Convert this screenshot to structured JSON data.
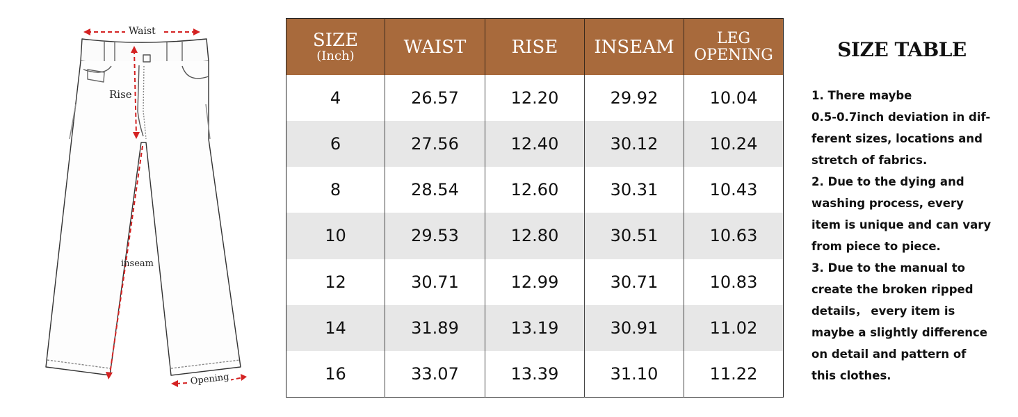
{
  "diagram": {
    "waist_label": "Waist",
    "rise_label": "Rise",
    "inseam_label": "inseam",
    "opening_label": "Opening"
  },
  "table": {
    "headers": [
      {
        "main": "SIZE",
        "sub": "(Inch)"
      },
      {
        "main": "WAIST"
      },
      {
        "main": "RISE"
      },
      {
        "main": "INSEAM"
      },
      {
        "main": "LEG",
        "sub": "OPENING"
      }
    ],
    "rows": [
      [
        "4",
        "26.57",
        "12.20",
        "29.92",
        "10.04"
      ],
      [
        "6",
        "27.56",
        "12.40",
        "30.12",
        "10.24"
      ],
      [
        "8",
        "28.54",
        "12.60",
        "30.31",
        "10.43"
      ],
      [
        "10",
        "29.53",
        "12.80",
        "30.51",
        "10.63"
      ],
      [
        "12",
        "30.71",
        "12.99",
        "30.71",
        "10.83"
      ],
      [
        "14",
        "31.89",
        "13.19",
        "30.91",
        "11.02"
      ],
      [
        "16",
        "33.07",
        "13.39",
        "31.10",
        "11.22"
      ]
    ],
    "header_color": "#a86a3c",
    "stripe_color": "#e7e7e7"
  },
  "notes": {
    "title": "SIZE TABLE",
    "lines": [
      "1.  There maybe",
      "0.5-0.7inch deviation in dif-",
      "ferent sizes, locations and",
      "stretch of fabrics.",
      "2.  Due to the dying and",
      "washing process, every",
      "item is unique and can vary",
      "from piece to piece.",
      "3.  Due to the manual to",
      "create the broken ripped",
      "details，  every item is",
      "maybe a slightly difference",
      "on detail and pattern of",
      "this clothes."
    ]
  }
}
